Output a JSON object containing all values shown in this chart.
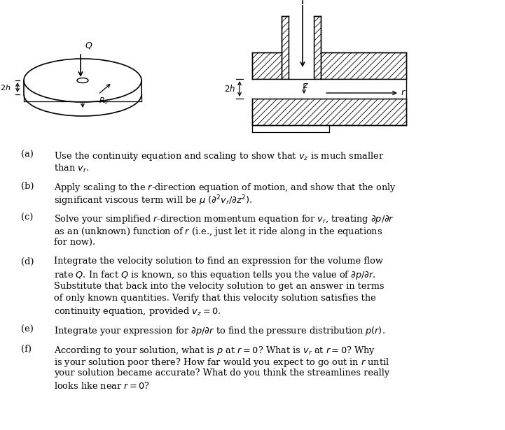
{
  "bg_color": "#ffffff",
  "text_color": "#000000",
  "fig_width": 7.21,
  "fig_height": 6.15,
  "paragraphs": [
    {
      "label": "(a)",
      "lines": [
        "Use the continuity equation and scaling to show that $v_z$ is much smaller",
        "than $v_r$."
      ]
    },
    {
      "label": "(b)",
      "lines": [
        "Apply scaling to the $r$-direction equation of motion, and show that the only",
        "significant viscous term will be $\\mu$ $(\\partial^2 v_r/\\partial z^2)$."
      ]
    },
    {
      "label": "(c)",
      "lines": [
        "Solve your simplified $r$-direction momentum equation for $v_r$, treating $\\partial p/\\partial r$",
        "as an (unknown) function of $r$ (i.e., just let it ride along in the equations",
        "for now)."
      ]
    },
    {
      "label": "(d)",
      "lines": [
        "Integrate the velocity solution to find an expression for the volume flow",
        "rate $Q$. In fact $Q$ is known, so this equation tells you the value of $\\partial p/\\partial r$.",
        "Substitute that back into the velocity solution to get an answer in terms",
        "of only known quantities. Verify that this velocity solution satisfies the",
        "continuity equation, provided $v_z = 0$."
      ]
    },
    {
      "label": "(e)",
      "lines": [
        "Integrate your expression for $\\partial p/\\partial r$ to find the pressure distribution $p(r)$."
      ]
    },
    {
      "label": "(f)",
      "lines": [
        "According to your solution, what is $p$ at $r = 0$? What is $v_r$ at $r = 0$? Why",
        "is your solution poor there? How far would you expect to go out in $r$ until",
        "your solution became accurate? What do you think the streamlines really",
        "looks like near $r = 0$?"
      ]
    }
  ]
}
